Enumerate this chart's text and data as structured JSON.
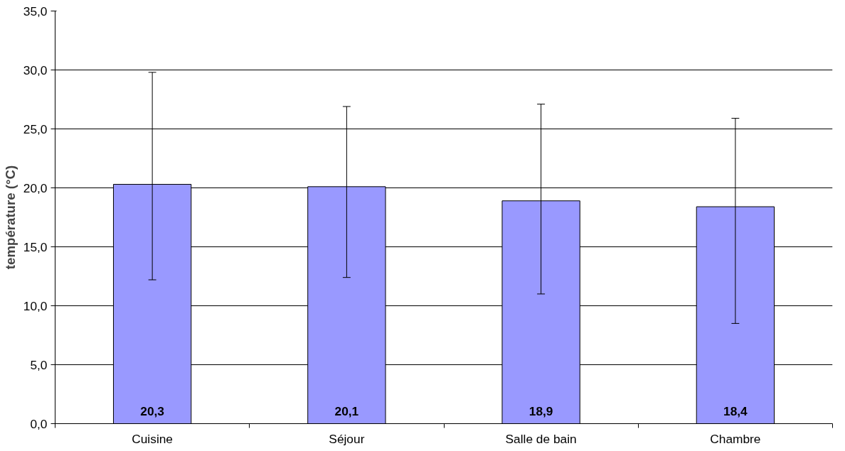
{
  "chart_data": {
    "type": "bar",
    "ylabel": "température (°C)",
    "categories": [
      "Cuisine",
      "Séjour",
      "Salle de bain",
      "Chambre"
    ],
    "values": [
      20.3,
      20.1,
      18.9,
      18.4
    ],
    "value_labels": [
      "20,3",
      "20,1",
      "18,9",
      "18,4"
    ],
    "errors": [
      [
        12.2,
        29.8
      ],
      [
        12.4,
        26.9
      ],
      [
        11.0,
        27.1
      ],
      [
        8.5,
        25.9
      ]
    ],
    "color": "#9999ff",
    "ylim": [
      0,
      35
    ],
    "yticks": [
      {
        "value": 0,
        "label": "0,0"
      },
      {
        "value": 5,
        "label": "5,0"
      },
      {
        "value": 10,
        "label": "10,0"
      },
      {
        "value": 15,
        "label": "15,0"
      },
      {
        "value": 20,
        "label": "20,0"
      },
      {
        "value": 25,
        "label": "25,0"
      },
      {
        "value": 30,
        "label": "30,0"
      },
      {
        "value": 35,
        "label": "35,0"
      }
    ],
    "grid": "y"
  }
}
